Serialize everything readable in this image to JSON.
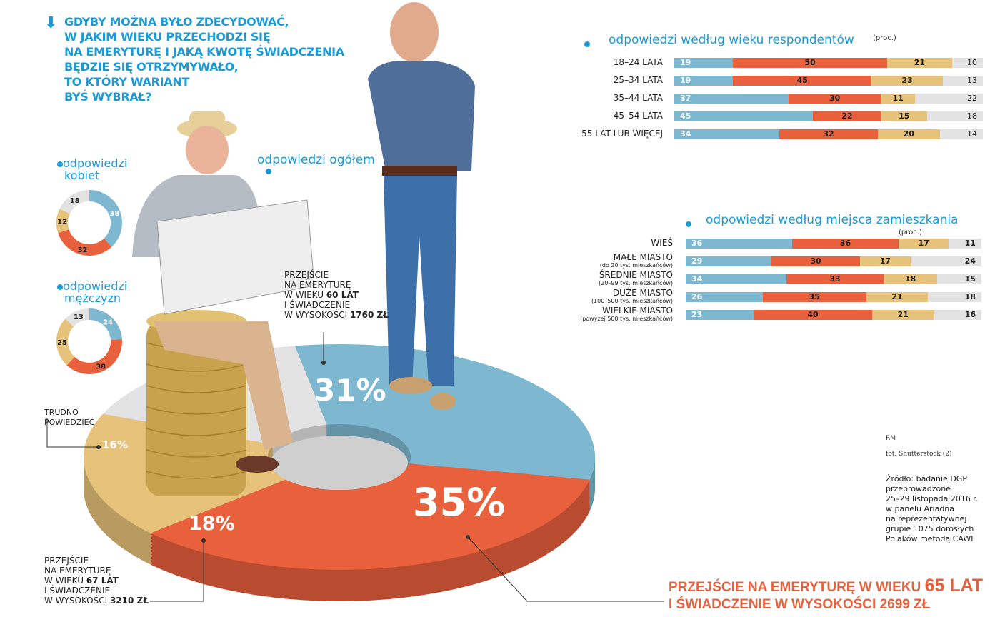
{
  "title_lines": [
    "Gdyby można było zdecydować,",
    "w jakim wieku przechodzi się",
    "na emeryturę i jaką kwotę świadczenia",
    "będzie się otrzymywało,",
    "to który wariant",
    "byś wybrał?"
  ],
  "colors": {
    "blue": "#7db8d0",
    "red": "#e8603c",
    "yellow": "#e6c27a",
    "gray": "#e3e3e3",
    "accent": "#1a9ad6"
  },
  "labels": {
    "overall": "odpowiedzi ogółem",
    "women": [
      "odpowiedzi",
      "kobiet"
    ],
    "men": [
      "odpowiedzi",
      "mężczyzn"
    ],
    "age_title": "odpowiedzi według wieku respondentów",
    "residence_title": "odpowiedzi według miejsca zamieszkania",
    "unit": "(proc.)"
  },
  "callouts": {
    "blue": {
      "lines": [
        "Przejście",
        "na emeryturę",
        "w wieku ",
        "i świadczenie",
        "w wysokości "
      ],
      "age": "60 lat",
      "amount": "1760 zł"
    },
    "yellow": {
      "lines": [
        "Przejście",
        "na emeryturę",
        "w wieku ",
        "i świadczenie",
        "w wysokości "
      ],
      "age": "67 lat",
      "amount": "3210 zł"
    },
    "red": {
      "line1": "Przejście na emeryturę w wieku ",
      "age": "65 lat",
      "line2": "i świadczenie w wysokości ",
      "amount": "2699 zł"
    },
    "gray": [
      "Trudno",
      "powiedzieć"
    ]
  },
  "credits": {
    "author": "RM",
    "photo": "fot. Shutterstock (2)",
    "source": [
      "Źródło: badanie DGP",
      "przeprowadzone",
      "25–29 listopada 2016 r.",
      "w panelu Ariadna",
      "na reprezentatywnej",
      "grupie 1075 dorosłych",
      "Polaków metodą CAWI"
    ]
  },
  "chart_data": [
    {
      "type": "pie",
      "name": "odpowiedzi ogółem",
      "categories": [
        "60 lat / 1760 zł",
        "65 lat / 2699 zł",
        "67 lat / 3210 zł",
        "Trudno powiedzieć"
      ],
      "values": [
        31,
        35,
        18,
        16
      ],
      "value_labels": [
        "31%",
        "35%",
        "18%",
        "16%"
      ],
      "colors": [
        "#7db8d0",
        "#e8603c",
        "#e6c27a",
        "#e3e3e3"
      ]
    },
    {
      "type": "pie",
      "name": "odpowiedzi kobiet",
      "values": [
        38,
        32,
        12,
        18
      ]
    },
    {
      "type": "pie",
      "name": "odpowiedzi mężczyzn",
      "values": [
        24,
        38,
        25,
        13
      ]
    },
    {
      "type": "bar",
      "stacked": true,
      "orientation": "horizontal",
      "name": "odpowiedzi według wieku respondentów",
      "categories": [
        "18–24 LATA",
        "25–34 LATA",
        "35–44 LATA",
        "45–54 LATA",
        "55 LAT LUB WIĘCEJ"
      ],
      "series": [
        {
          "values": [
            19,
            19,
            37,
            45,
            34
          ]
        },
        {
          "values": [
            50,
            45,
            30,
            22,
            32
          ]
        },
        {
          "values": [
            21,
            23,
            11,
            15,
            20
          ]
        },
        {
          "values": [
            10,
            13,
            22,
            18,
            14
          ]
        }
      ]
    },
    {
      "type": "bar",
      "stacked": true,
      "orientation": "horizontal",
      "name": "odpowiedzi według miejsca zamieszkania",
      "categories": [
        "WIEŚ",
        "MAŁE MIASTO",
        "ŚREDNIE MIASTO",
        "DUŻE MIASTO",
        "WIELKIE MIASTO"
      ],
      "subcategories": [
        "",
        "(do 20 tys. mieszkańców)",
        "(20–99 tys. mieszkańców)",
        "(100–500 tys. mieszkańców)",
        "(powyżej 500 tys. mieszkańców)"
      ],
      "series": [
        {
          "values": [
            36,
            29,
            34,
            26,
            23
          ]
        },
        {
          "values": [
            36,
            30,
            33,
            35,
            40
          ]
        },
        {
          "values": [
            17,
            17,
            18,
            21,
            21
          ]
        },
        {
          "values": [
            11,
            24,
            15,
            18,
            16
          ]
        }
      ]
    }
  ]
}
